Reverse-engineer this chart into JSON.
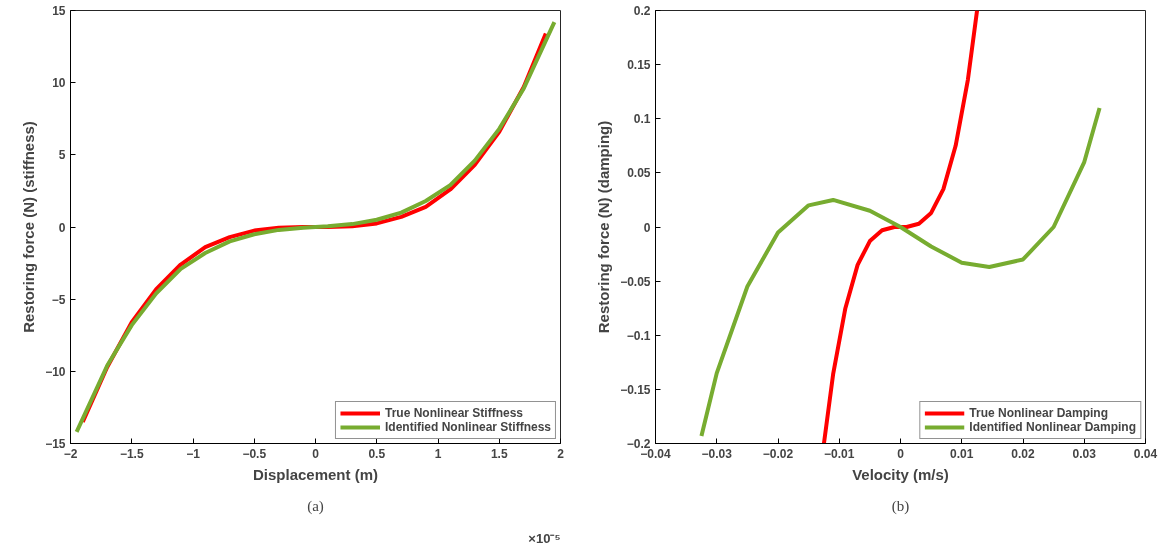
{
  "chart_data": [
    {
      "type": "line",
      "xlabel": "Displacement (m)",
      "ylabel": "Restoring force (N) (stiffness)",
      "annotations": [
        "×10⁻⁵",
        "(a)"
      ],
      "xlim": [
        -2,
        2
      ],
      "ylim": [
        -15,
        15
      ],
      "xticks": [
        -2,
        -1.5,
        -1,
        -0.5,
        0,
        0.5,
        1,
        1.5,
        2
      ],
      "yticks": [
        -15,
        -10,
        -5,
        0,
        5,
        10,
        15
      ],
      "grid": false,
      "legend": "bottom right",
      "line_style": "solid",
      "marker": "none",
      "series": [
        {
          "name": "True Nonlinear Stiffness",
          "color": "#ff0000",
          "x": [
            -1.9,
            -1.7,
            -1.5,
            -1.3,
            -1.1,
            -0.9,
            -0.7,
            -0.5,
            -0.3,
            -0.1,
            0.1,
            0.3,
            0.5,
            0.7,
            0.9,
            1.1,
            1.3,
            1.5,
            1.7,
            1.88
          ],
          "values": [
            -13.5,
            -9.7,
            -6.6,
            -4.3,
            -2.6,
            -1.4,
            -0.7,
            -0.25,
            -0.05,
            0,
            0,
            0.05,
            0.25,
            0.7,
            1.4,
            2.6,
            4.3,
            6.6,
            9.7,
            13.4
          ]
        },
        {
          "name": "Identified Nonlinear Stiffness",
          "color": "#77ac30",
          "x": [
            -1.95,
            -1.7,
            -1.5,
            -1.3,
            -1.1,
            -0.9,
            -0.7,
            -0.5,
            -0.3,
            -0.1,
            0.1,
            0.3,
            0.5,
            0.7,
            0.9,
            1.1,
            1.3,
            1.5,
            1.7,
            1.95
          ],
          "values": [
            -14.2,
            -9.6,
            -6.8,
            -4.6,
            -2.9,
            -1.8,
            -1.0,
            -0.5,
            -0.2,
            -0.05,
            0.05,
            0.2,
            0.5,
            1.0,
            1.8,
            2.9,
            4.6,
            6.8,
            9.6,
            14.2
          ]
        }
      ]
    },
    {
      "type": "line",
      "xlabel": "Velocity (m/s)",
      "ylabel": "Restoring force (N) (damping)",
      "annotations": [
        "(b)"
      ],
      "xlim": [
        -0.04,
        0.04
      ],
      "ylim": [
        -0.2,
        0.2
      ],
      "xticks": [
        -0.04,
        -0.03,
        -0.02,
        -0.01,
        0,
        0.01,
        0.02,
        0.03,
        0.04
      ],
      "yticks": [
        -0.2,
        -0.15,
        -0.1,
        -0.05,
        0,
        0.05,
        0.1,
        0.15,
        0.2
      ],
      "grid": false,
      "legend": "bottom right",
      "line_style": "solid",
      "marker": "none",
      "series": [
        {
          "name": "True Nonlinear Damping",
          "color": "#ff0000",
          "x": [
            -0.0125,
            -0.011,
            -0.009,
            -0.007,
            -0.005,
            -0.003,
            -0.001,
            0.001,
            0.003,
            0.005,
            0.007,
            0.009,
            0.011,
            0.0125
          ],
          "values": [
            -0.2,
            -0.136,
            -0.075,
            -0.035,
            -0.013,
            -0.003,
            0,
            0,
            0.003,
            0.013,
            0.035,
            0.075,
            0.136,
            0.2
          ]
        },
        {
          "name": "Identified Nonlinear Damping",
          "color": "#77ac30",
          "x": [
            -0.0325,
            -0.03,
            -0.025,
            -0.02,
            -0.015,
            -0.011,
            -0.005,
            0,
            0.005,
            0.01,
            0.0145,
            0.02,
            0.025,
            0.03,
            0.0325
          ],
          "values": [
            -0.193,
            -0.135,
            -0.055,
            -0.005,
            0.02,
            0.025,
            0.015,
            0,
            -0.018,
            -0.033,
            -0.037,
            -0.03,
            0.0,
            0.06,
            0.11
          ]
        }
      ]
    }
  ]
}
